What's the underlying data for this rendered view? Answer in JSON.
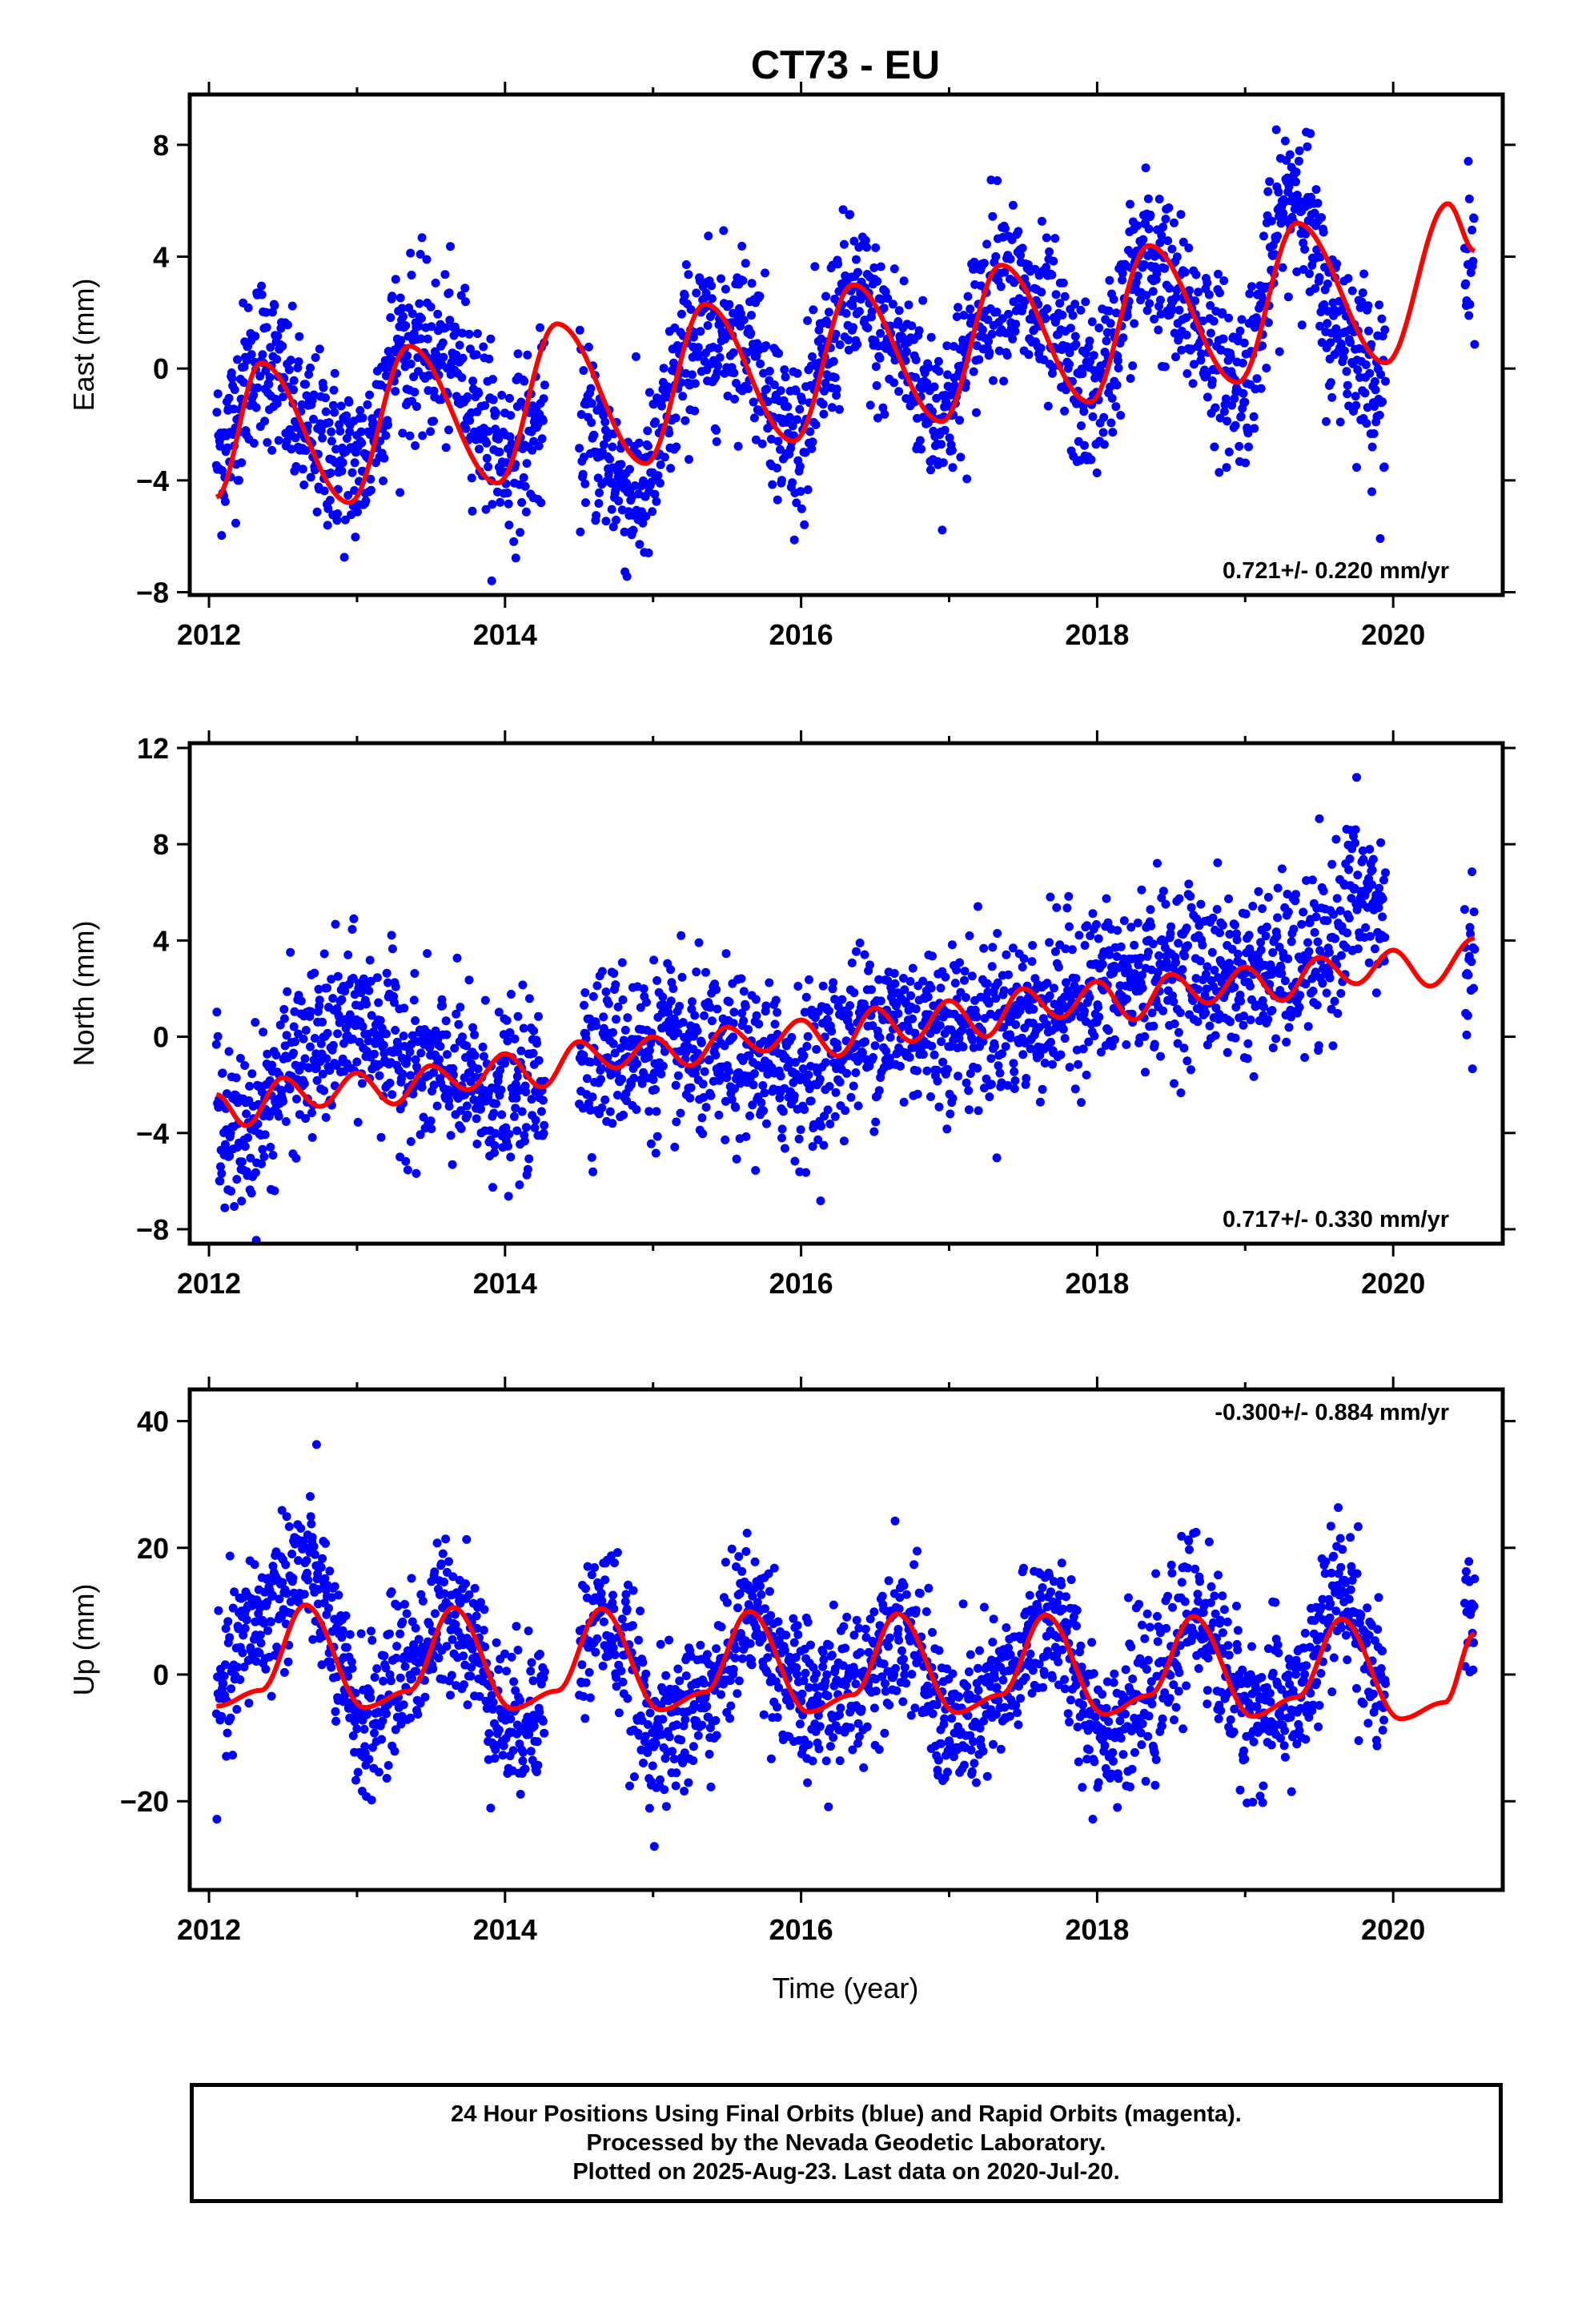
{
  "figure": {
    "title": "CT73 - EU",
    "xlabel": "Time (year)",
    "footer": [
      "24 Hour Positions Using Final Orbits (blue) and Rapid Orbits (magenta).",
      "Processed by the Nevada Geodetic Laboratory.",
      "Plotted on 2025-Aug-23. Last data on 2020-Jul-20."
    ],
    "colors": {
      "data": "#0000ff",
      "model": "#ff0000",
      "axes": "#000000"
    }
  },
  "chart_data": [
    {
      "type": "scatter",
      "component": "east",
      "ylabel": "East (mm)",
      "rate_text": "0.721+/- 0.220 mm/yr",
      "xlim": [
        2011.87,
        2020.74
      ],
      "ylim": [
        -8.1,
        9.8
      ],
      "xticks": [
        2012,
        2014,
        2016,
        2018,
        2020
      ],
      "yticks": [
        -8,
        -4,
        0,
        4,
        8
      ],
      "x_range": [
        2012.05,
        2020.55
      ],
      "gaps": [
        [
          2014.27,
          2014.5
        ],
        [
          2019.95,
          2020.48
        ]
      ],
      "series": [
        {
          "role": "data",
          "color": "#0000ff",
          "envelope_x": [
            2012.05,
            2012.35,
            2012.7,
            2013.0,
            2013.3,
            2013.65,
            2014.0,
            2014.27,
            2014.5,
            2014.9,
            2015.3,
            2015.6,
            2015.95,
            2016.35,
            2016.6,
            2016.95,
            2017.35,
            2017.6,
            2017.95,
            2018.35,
            2018.6,
            2018.95,
            2019.35,
            2019.6,
            2019.95,
            2020.48,
            2020.55
          ],
          "envelope_y": [
            -3.0,
            0.5,
            -2.5,
            -3.5,
            0.8,
            0.2,
            -3.0,
            -2.0,
            -2.0,
            -4.5,
            1.0,
            1.5,
            -2.5,
            2.5,
            1.0,
            -1.5,
            3.5,
            1.8,
            -1.0,
            4.0,
            2.0,
            -0.5,
            6.5,
            1.5,
            -0.5,
            3.5,
            3.5
          ],
          "spread": 1.5,
          "approx_count": 2400
        },
        {
          "role": "model",
          "color": "#ff0000",
          "x": [
            2012.05,
            2012.35,
            2012.95,
            2013.35,
            2013.95,
            2014.35,
            2014.95,
            2015.35,
            2015.95,
            2016.35,
            2016.95,
            2017.35,
            2017.95,
            2018.35,
            2018.95,
            2019.35,
            2019.95,
            2020.37,
            2020.55
          ],
          "y": [
            -4.6,
            0.2,
            -4.8,
            0.8,
            -4.1,
            1.6,
            -3.4,
            2.3,
            -2.6,
            3.0,
            -1.9,
            3.7,
            -1.2,
            4.4,
            -0.5,
            5.2,
            0.2,
            5.9,
            4.2
          ]
        }
      ]
    },
    {
      "type": "scatter",
      "component": "north",
      "ylabel": "North (mm)",
      "rate_text": "0.717+/- 0.330 mm/yr",
      "xlim": [
        2011.87,
        2020.74
      ],
      "ylim": [
        -8.6,
        12.2
      ],
      "xticks": [
        2012,
        2014,
        2016,
        2018,
        2020
      ],
      "yticks": [
        -8,
        -4,
        0,
        4,
        8,
        12
      ],
      "x_range": [
        2012.05,
        2020.55
      ],
      "gaps": [
        [
          2014.27,
          2014.5
        ],
        [
          2019.95,
          2020.48
        ]
      ],
      "series": [
        {
          "role": "data",
          "color": "#0000ff",
          "envelope_x": [
            2012.05,
            2012.15,
            2012.3,
            2012.6,
            2013.0,
            2013.5,
            2014.0,
            2014.27,
            2014.5,
            2015.0,
            2015.5,
            2016.0,
            2016.5,
            2017.0,
            2017.5,
            2018.0,
            2018.5,
            2019.0,
            2019.5,
            2019.75,
            2019.95,
            2020.48,
            2020.55
          ],
          "envelope_y": [
            -2.0,
            -4.5,
            -3.5,
            -1.0,
            0.5,
            -1.5,
            -2.5,
            -2.0,
            -0.5,
            -0.5,
            -1.0,
            -1.5,
            0.5,
            0.5,
            0.8,
            2.0,
            2.8,
            2.5,
            3.0,
            6.0,
            5.0,
            3.0,
            3.0
          ],
          "spread": 1.7,
          "approx_count": 2400
        },
        {
          "role": "model",
          "color": "#ff0000",
          "x": [
            2012.05,
            2012.25,
            2012.5,
            2012.75,
            2013.0,
            2013.25,
            2013.5,
            2013.75,
            2014.0,
            2014.25,
            2014.5,
            2014.75,
            2015.0,
            2015.25,
            2015.5,
            2015.75,
            2016.0,
            2016.25,
            2016.5,
            2016.75,
            2017.0,
            2017.25,
            2017.5,
            2017.75,
            2018.0,
            2018.25,
            2018.5,
            2018.75,
            2019.0,
            2019.25,
            2019.5,
            2019.75,
            2020.0,
            2020.25,
            2020.55
          ],
          "y": [
            -2.4,
            -3.7,
            -1.7,
            -2.9,
            -1.5,
            -2.8,
            -1.2,
            -2.2,
            -0.7,
            -2.1,
            -0.2,
            -1.3,
            0.0,
            -1.2,
            0.4,
            -0.6,
            0.7,
            -0.8,
            1.2,
            -0.2,
            1.5,
            0.0,
            2.0,
            0.8,
            2.3,
            0.7,
            2.6,
            1.4,
            2.9,
            1.5,
            3.3,
            2.2,
            3.6,
            2.1,
            4.1
          ]
        }
      ]
    },
    {
      "type": "scatter",
      "component": "up",
      "ylabel": "Up (mm)",
      "rate_text": "-0.300+/- 0.884 mm/yr",
      "xlim": [
        2011.87,
        2020.74
      ],
      "ylim": [
        -34,
        45
      ],
      "xticks": [
        2012,
        2014,
        2016,
        2018,
        2020
      ],
      "yticks": [
        -20,
        0,
        20,
        40
      ],
      "x_range": [
        2012.05,
        2020.55
      ],
      "gaps": [
        [
          2014.27,
          2014.5
        ],
        [
          2019.95,
          2020.48
        ]
      ],
      "series": [
        {
          "role": "data",
          "color": "#0000ff",
          "envelope_x": [
            2012.05,
            2012.3,
            2012.65,
            2013.05,
            2013.35,
            2013.65,
            2014.05,
            2014.27,
            2014.5,
            2014.65,
            2015.05,
            2015.35,
            2015.65,
            2016.05,
            2016.35,
            2016.65,
            2017.05,
            2017.35,
            2017.65,
            2018.05,
            2018.35,
            2018.65,
            2019.05,
            2019.35,
            2019.65,
            2019.95,
            2020.48,
            2020.55
          ],
          "envelope_y": [
            -5.0,
            8.0,
            17.0,
            -8.0,
            2.0,
            10.0,
            -8.0,
            -4.0,
            4.0,
            10.0,
            -10.0,
            -4.0,
            10.0,
            -5.0,
            -2.0,
            8.0,
            -9.0,
            -3.0,
            9.0,
            -8.0,
            -4.0,
            10.0,
            -6.0,
            -4.0,
            13.0,
            -3.0,
            6.0,
            8.0
          ],
          "spread": 6.0,
          "approx_count": 2400
        },
        {
          "role": "model",
          "color": "#ff0000",
          "x": [
            2012.05,
            2012.35,
            2012.65,
            2013.05,
            2013.35,
            2013.65,
            2014.05,
            2014.35,
            2014.65,
            2015.05,
            2015.35,
            2015.65,
            2016.05,
            2016.35,
            2016.65,
            2017.05,
            2017.35,
            2017.65,
            2018.05,
            2018.35,
            2018.65,
            2019.05,
            2019.35,
            2019.65,
            2020.05,
            2020.35,
            2020.55
          ],
          "y": [
            -5.0,
            -2.5,
            11.0,
            -5.2,
            -2.6,
            10.6,
            -5.4,
            -2.6,
            10.4,
            -5.6,
            -2.8,
            10.0,
            -5.9,
            -3.2,
            9.6,
            -6.0,
            -3.2,
            9.4,
            -6.3,
            -3.3,
            9.2,
            -6.6,
            -3.6,
            8.8,
            -7.0,
            -4.4,
            6.5
          ]
        }
      ]
    }
  ]
}
